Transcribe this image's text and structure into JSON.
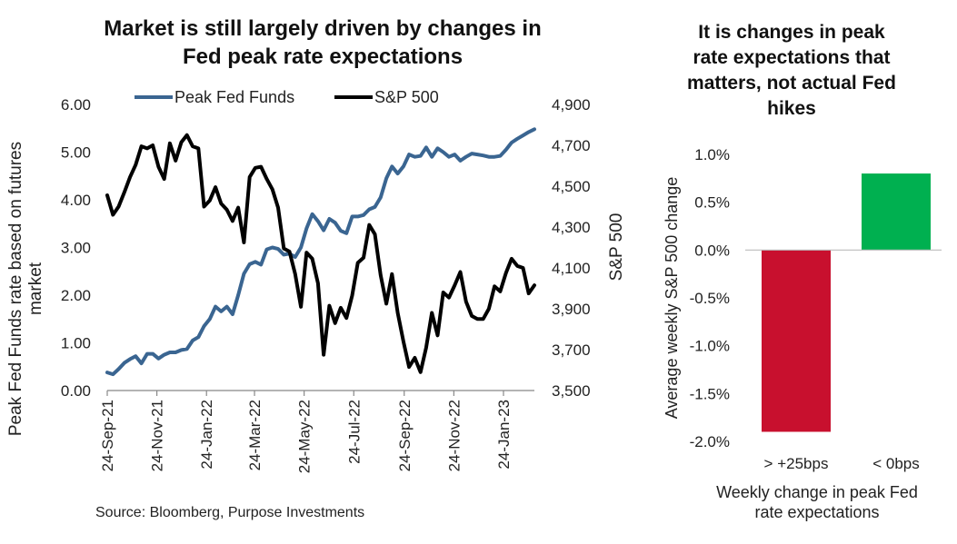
{
  "left_title_lines": [
    "Market is still largely driven by changes in",
    "Fed peak rate expectations"
  ],
  "right_title_lines": [
    "It is changes in peak",
    "rate expectations that",
    "matters, not actual Fed",
    "hikes"
  ],
  "source": "Source: Bloomberg, Purpose Investments",
  "chart_data": [
    {
      "type": "line",
      "legend_placement": "top",
      "grid": false,
      "x_dates": [
        "2021-09-24",
        "2021-10-01",
        "2021-10-08",
        "2021-10-15",
        "2021-10-22",
        "2021-10-29",
        "2021-11-05",
        "2021-11-12",
        "2021-11-19",
        "2021-11-26",
        "2021-12-03",
        "2021-12-10",
        "2021-12-17",
        "2021-12-24",
        "2021-12-31",
        "2022-01-07",
        "2022-01-14",
        "2022-01-21",
        "2022-01-28",
        "2022-02-04",
        "2022-02-11",
        "2022-02-18",
        "2022-02-25",
        "2022-03-04",
        "2022-03-11",
        "2022-03-18",
        "2022-03-25",
        "2022-04-01",
        "2022-04-08",
        "2022-04-15",
        "2022-04-22",
        "2022-04-29",
        "2022-05-06",
        "2022-05-13",
        "2022-05-20",
        "2022-05-27",
        "2022-06-03",
        "2022-06-10",
        "2022-06-17",
        "2022-06-24",
        "2022-07-01",
        "2022-07-08",
        "2022-07-15",
        "2022-07-22",
        "2022-07-29",
        "2022-08-05",
        "2022-08-12",
        "2022-08-19",
        "2022-08-26",
        "2022-09-02",
        "2022-09-09",
        "2022-09-16",
        "2022-09-23",
        "2022-09-30",
        "2022-10-07",
        "2022-10-14",
        "2022-10-21",
        "2022-10-28",
        "2022-11-04",
        "2022-11-11",
        "2022-11-18",
        "2022-11-25",
        "2022-12-02",
        "2022-12-09",
        "2022-12-16",
        "2022-12-23",
        "2022-12-30",
        "2023-01-06",
        "2023-01-13",
        "2023-01-20",
        "2023-01-27",
        "2023-02-03",
        "2023-02-10",
        "2023-02-17",
        "2023-02-24",
        "2023-03-03"
      ],
      "x_tick_labels": [
        "24-Sep-21",
        "24-Nov-21",
        "24-Jan-22",
        "24-Mar-22",
        "24-May-22",
        "24-Jul-22",
        "24-Sep-22",
        "24-Nov-22",
        "24-Jan-23"
      ],
      "x_tick_dates": [
        "2021-09-24",
        "2021-11-24",
        "2022-01-24",
        "2022-03-24",
        "2022-05-24",
        "2022-07-24",
        "2022-09-24",
        "2022-11-24",
        "2023-01-24"
      ],
      "y_left": {
        "label": "Peak Fed Funds rate based on futures market",
        "range": [
          0,
          6
        ],
        "tick_labels": [
          "0.00",
          "1.00",
          "2.00",
          "3.00",
          "4.00",
          "5.00",
          "6.00"
        ]
      },
      "y_right": {
        "label": "S&P 500",
        "range": [
          3500,
          4900
        ],
        "tick_labels": [
          "3,500",
          "3,700",
          "3,900",
          "4,100",
          "4,300",
          "4,500",
          "4,700",
          "4,900"
        ]
      },
      "series": [
        {
          "name": "Peak Fed Funds",
          "axis": "left",
          "color": "#3a6591",
          "values": [
            0.38,
            0.34,
            0.45,
            0.58,
            0.66,
            0.72,
            0.57,
            0.77,
            0.77,
            0.67,
            0.75,
            0.8,
            0.8,
            0.85,
            0.87,
            1.05,
            1.12,
            1.35,
            1.5,
            1.76,
            1.66,
            1.76,
            1.6,
            2.0,
            2.45,
            2.65,
            2.7,
            2.64,
            2.96,
            3.0,
            2.97,
            2.85,
            2.87,
            2.8,
            3.0,
            3.4,
            3.7,
            3.55,
            3.36,
            3.6,
            3.52,
            3.35,
            3.3,
            3.65,
            3.65,
            3.68,
            3.8,
            3.85,
            4.05,
            4.45,
            4.7,
            4.55,
            4.7,
            4.95,
            4.9,
            4.92,
            5.1,
            4.9,
            5.08,
            5.0,
            4.9,
            4.95,
            4.82,
            4.9,
            4.97,
            4.95,
            4.93,
            4.9,
            4.9,
            4.92,
            5.05,
            5.2,
            5.28,
            5.35,
            5.42,
            5.48
          ]
        },
        {
          "name": "S&P 500",
          "axis": "right",
          "color": "#000000",
          "values": [
            4455,
            4360,
            4400,
            4470,
            4545,
            4605,
            4695,
            4685,
            4700,
            4595,
            4535,
            4710,
            4625,
            4715,
            4750,
            4695,
            4685,
            4400,
            4430,
            4495,
            4415,
            4385,
            4330,
            4395,
            4225,
            4545,
            4590,
            4595,
            4535,
            4485,
            4395,
            4195,
            4180,
            4070,
            3910,
            4175,
            4145,
            4025,
            3675,
            3915,
            3830,
            3905,
            3855,
            3965,
            4125,
            4150,
            4310,
            4265,
            4065,
            3925,
            4070,
            3880,
            3740,
            3615,
            3660,
            3590,
            3710,
            3880,
            3770,
            3980,
            3955,
            4015,
            4080,
            3935,
            3865,
            3850,
            3850,
            3900,
            4010,
            3985,
            4075,
            4145,
            4110,
            4100,
            3975,
            4015
          ]
        }
      ]
    },
    {
      "type": "bar",
      "categories": [
        "> +25bps",
        "< 0bps"
      ],
      "values": [
        -1.9,
        0.8
      ],
      "colors": [
        "#c8102e",
        "#00b050"
      ],
      "xlabel": "Weekly change in peak Fed rate expectations",
      "ylabel": "Average weekly S&P 500 change",
      "ylim": [
        -2.0,
        1.0
      ],
      "y_tick_labels": [
        "-2.0%",
        "-1.5%",
        "-1.0%",
        "-0.5%",
        "0.0%",
        "0.5%",
        "1.0%"
      ]
    }
  ]
}
